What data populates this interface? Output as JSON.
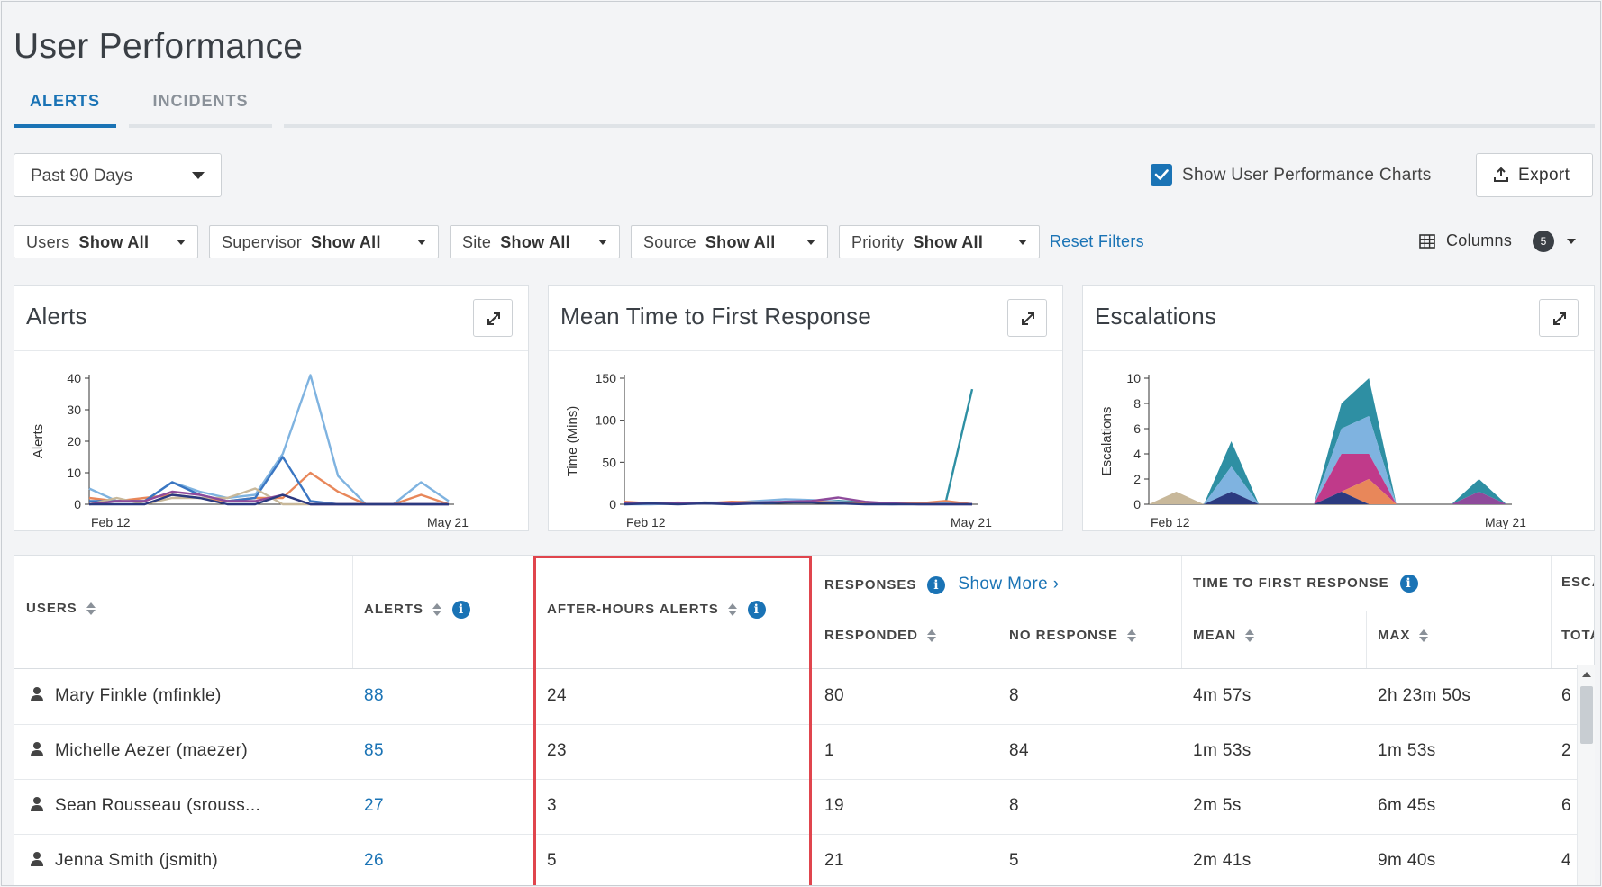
{
  "page": {
    "title": "User Performance"
  },
  "tabs": [
    {
      "label": "ALERTS"
    },
    {
      "label": "INCIDENTS"
    }
  ],
  "range": {
    "value": "Past 90 Days"
  },
  "show_charts": {
    "label": "Show User Performance Charts",
    "checked": true
  },
  "export": {
    "label": "Export"
  },
  "filters": [
    {
      "name": "Users",
      "value": "Show All"
    },
    {
      "name": "Supervisor",
      "value": "Show All"
    },
    {
      "name": "Site",
      "value": "Show All"
    },
    {
      "name": "Source",
      "value": "Show All"
    },
    {
      "name": "Priority",
      "value": "Show All"
    }
  ],
  "reset_filters": "Reset Filters",
  "columns_button": {
    "label": "Columns",
    "count": "5"
  },
  "colors": {
    "accent": "#1a73b5",
    "highlight": "#e0454d"
  },
  "charts": {
    "alerts": {
      "title": "Alerts"
    },
    "mttr": {
      "title": "Mean Time to First Response"
    },
    "escalations": {
      "title": "Escalations"
    }
  },
  "chart_data": [
    {
      "type": "line",
      "title": "Alerts",
      "xlabel": "",
      "ylabel": "Alerts",
      "x_tick_labels": [
        "Feb 12",
        "May 21"
      ],
      "y_ticks": [
        "0",
        "10",
        "20",
        "30",
        "40"
      ],
      "ylim": [
        0,
        40
      ],
      "x": [
        0,
        1,
        2,
        3,
        4,
        5,
        6,
        7,
        8,
        9,
        10,
        11,
        12,
        13
      ],
      "series": [
        {
          "color": "#7fb3e0",
          "values": [
            5,
            1,
            1,
            7,
            4,
            2,
            3,
            16,
            41,
            9,
            0,
            0,
            7,
            1
          ]
        },
        {
          "color": "#e8875a",
          "values": [
            2,
            1,
            2,
            3,
            2,
            1,
            2,
            2,
            10,
            4,
            0,
            0,
            3,
            0
          ]
        },
        {
          "color": "#3a76c2",
          "values": [
            1,
            1,
            1,
            7,
            3,
            1,
            2,
            15,
            1,
            0,
            0,
            0,
            0,
            0
          ]
        },
        {
          "color": "#c8b89a",
          "values": [
            0,
            2,
            0,
            2,
            2,
            2,
            5,
            0,
            0,
            0,
            0,
            0,
            0,
            0
          ]
        },
        {
          "color": "#8e4a9b",
          "values": [
            0,
            1,
            1,
            4,
            3,
            1,
            1,
            3,
            0,
            0,
            0,
            0,
            0,
            0
          ]
        },
        {
          "color": "#2b3a80",
          "values": [
            0,
            0,
            0,
            3,
            2,
            0,
            0,
            3,
            0,
            0,
            0,
            0,
            0,
            0
          ]
        }
      ]
    },
    {
      "type": "line",
      "title": "Mean Time to First Response",
      "xlabel": "",
      "ylabel": "Time (Mins)",
      "x_tick_labels": [
        "Feb 12",
        "May 21"
      ],
      "y_ticks": [
        "0",
        "50",
        "100",
        "150"
      ],
      "ylim": [
        0,
        150
      ],
      "x": [
        0,
        1,
        2,
        3,
        4,
        5,
        6,
        7,
        8,
        9,
        10,
        11,
        12,
        13
      ],
      "series": [
        {
          "color": "#2e8fa3",
          "values": [
            2,
            1,
            1,
            1,
            2,
            1,
            2,
            3,
            4,
            2,
            1,
            1,
            1,
            137
          ]
        },
        {
          "color": "#7fb3e0",
          "values": [
            0,
            0,
            1,
            2,
            2,
            4,
            6,
            5,
            3,
            1,
            0,
            1,
            2,
            0
          ]
        },
        {
          "color": "#e8875a",
          "values": [
            3,
            1,
            2,
            1,
            3,
            2,
            2,
            3,
            2,
            2,
            1,
            1,
            4,
            0
          ]
        },
        {
          "color": "#8e4a9b",
          "values": [
            1,
            1,
            1,
            2,
            1,
            2,
            3,
            4,
            8,
            3,
            1,
            0,
            0,
            0
          ]
        },
        {
          "color": "#2b3a80",
          "values": [
            0,
            1,
            0,
            1,
            0,
            1,
            2,
            2,
            1,
            0,
            0,
            0,
            0,
            0
          ]
        }
      ]
    },
    {
      "type": "area",
      "title": "Escalations",
      "xlabel": "",
      "ylabel": "Escalations",
      "x_tick_labels": [
        "Feb 12",
        "May 21"
      ],
      "y_ticks": [
        "0",
        "2",
        "4",
        "6",
        "8",
        "10"
      ],
      "ylim": [
        0,
        10
      ],
      "x": [
        0,
        1,
        2,
        3,
        4,
        5,
        6,
        7,
        8,
        9,
        10,
        11,
        12,
        13
      ],
      "series": [
        {
          "color": "#2b3a80",
          "values": [
            0,
            0,
            0,
            1,
            0,
            0,
            0,
            1,
            0,
            0,
            0,
            0,
            0,
            0
          ]
        },
        {
          "color": "#8e4a9b",
          "values": [
            0,
            0,
            0,
            0,
            0,
            0,
            0,
            0,
            0,
            0,
            0,
            0,
            1,
            0
          ]
        },
        {
          "color": "#e8875a",
          "values": [
            0,
            0,
            0,
            0,
            0,
            0,
            0,
            0,
            2,
            0,
            0,
            0,
            0,
            0
          ]
        },
        {
          "color": "#c03a8a",
          "values": [
            0,
            0,
            0,
            0,
            0,
            0,
            0,
            3,
            2,
            0,
            0,
            0,
            0,
            0
          ]
        },
        {
          "color": "#7fb3e0",
          "values": [
            0,
            0,
            0,
            2,
            0,
            0,
            0,
            2,
            3,
            0,
            0,
            0,
            0,
            0
          ]
        },
        {
          "color": "#2e8fa3",
          "values": [
            0,
            0,
            0,
            2,
            0,
            0,
            0,
            2,
            3,
            0,
            0,
            0,
            1,
            0
          ]
        },
        {
          "color": "#c8b89a",
          "values": [
            0,
            1,
            0,
            0,
            0,
            0,
            0,
            0,
            0,
            0,
            0,
            0,
            0,
            0
          ]
        }
      ]
    }
  ],
  "table": {
    "headers": {
      "users": "USERS",
      "alerts": "ALERTS",
      "after_hours": "AFTER-HOURS ALERTS",
      "responses": "RESPONSES",
      "show_more": "Show More",
      "responded": "RESPONDED",
      "no_response": "NO RESPONSE",
      "ttfr": "TIME TO FIRST RESPONSE",
      "mean": "MEAN",
      "max": "MAX",
      "esc": "ESCA",
      "total": "TOTA"
    },
    "rows": [
      {
        "user": "Mary Finkle (mfinkle)",
        "alerts": "88",
        "after_hours": "24",
        "responded": "80",
        "no_response": "8",
        "mean": "4m 57s",
        "max": "2h 23m 50s",
        "total": "6"
      },
      {
        "user": "Michelle Aezer (maezer)",
        "alerts": "85",
        "after_hours": "23",
        "responded": "1",
        "no_response": "84",
        "mean": "1m 53s",
        "max": "1m 53s",
        "total": "2"
      },
      {
        "user": "Sean Rousseau (srouss...",
        "alerts": "27",
        "after_hours": "3",
        "responded": "19",
        "no_response": "8",
        "mean": "2m 5s",
        "max": "6m 45s",
        "total": "6"
      },
      {
        "user": "Jenna Smith (jsmith)",
        "alerts": "26",
        "after_hours": "5",
        "responded": "21",
        "no_response": "5",
        "mean": "2m 41s",
        "max": "9m 40s",
        "total": "4"
      }
    ]
  }
}
